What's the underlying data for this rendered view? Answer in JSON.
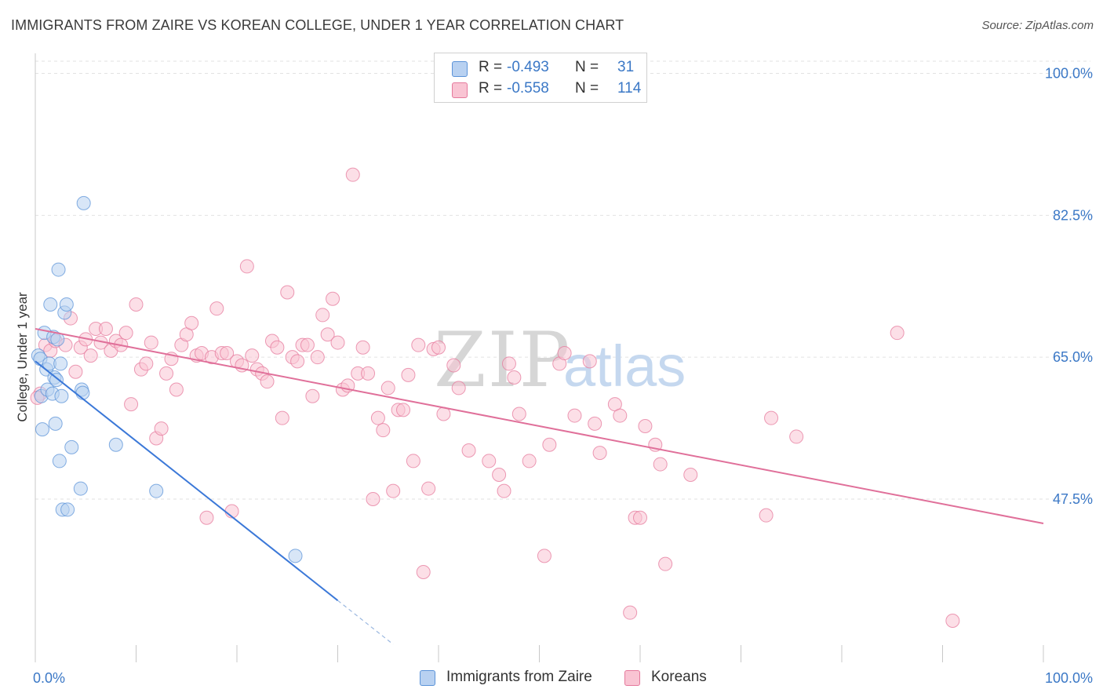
{
  "title": "IMMIGRANTS FROM ZAIRE VS KOREAN COLLEGE, UNDER 1 YEAR CORRELATION CHART",
  "source": "Source: ZipAtlas.com",
  "watermark": {
    "zip": "ZIP",
    "atlas": "atlas"
  },
  "legend_top": {
    "rows": [
      {
        "swatch_color": "#b8d1f1",
        "r_label": "R =",
        "r_value": "-0.493",
        "n_label": "N =",
        "n_value": "31"
      },
      {
        "swatch_color": "#f9c4d3",
        "r_label": "R =",
        "r_value": "-0.558",
        "n_label": "N =",
        "n_value": "114"
      }
    ]
  },
  "legend_bottom": [
    {
      "label": "Immigrants from Zaire",
      "color": "#b8d1f1"
    },
    {
      "label": "Koreans",
      "color": "#f9c4d3"
    }
  ],
  "chart_data": {
    "type": "scatter",
    "title": "IMMIGRANTS FROM ZAIRE VS KOREAN COLLEGE, UNDER 1 YEAR CORRELATION CHART",
    "xlabel": "",
    "ylabel": "College, Under 1 year",
    "xlim": [
      0,
      100
    ],
    "ylim": [
      29.5,
      101.5
    ],
    "x_tick_labels": [
      "0.0%",
      "100.0%"
    ],
    "y_ticks": [
      47.5,
      65.0,
      82.5,
      100.0
    ],
    "y_tick_labels": [
      "47.5%",
      "65.0%",
      "82.5%",
      "100.0%"
    ],
    "grid": true,
    "series": [
      {
        "name": "Immigrants from Zaire",
        "color": "#5b93d8",
        "fill": "#b8d1f1",
        "points": [
          [
            0.3,
            65.2
          ],
          [
            0.5,
            64.8
          ],
          [
            0.6,
            60.2
          ],
          [
            0.7,
            56.1
          ],
          [
            0.9,
            68.0
          ],
          [
            1.1,
            63.5
          ],
          [
            1.2,
            61.0
          ],
          [
            1.4,
            64.2
          ],
          [
            1.5,
            71.5
          ],
          [
            1.7,
            60.5
          ],
          [
            1.8,
            67.5
          ],
          [
            1.9,
            62.5
          ],
          [
            2.0,
            56.8
          ],
          [
            2.1,
            62.2
          ],
          [
            2.2,
            67.2
          ],
          [
            2.3,
            75.8
          ],
          [
            2.4,
            52.2
          ],
          [
            2.5,
            64.2
          ],
          [
            2.6,
            60.2
          ],
          [
            2.7,
            46.2
          ],
          [
            2.9,
            70.5
          ],
          [
            3.1,
            71.5
          ],
          [
            3.2,
            46.2
          ],
          [
            3.6,
            53.9
          ],
          [
            4.5,
            48.8
          ],
          [
            4.6,
            61.0
          ],
          [
            4.7,
            60.6
          ],
          [
            4.8,
            84.0
          ],
          [
            8.0,
            54.2
          ],
          [
            12.0,
            48.5
          ],
          [
            25.8,
            40.5
          ]
        ]
      },
      {
        "name": "Koreans",
        "color": "#e5799c",
        "fill": "#f9c4d3",
        "points": [
          [
            0.5,
            60.5
          ],
          [
            1.0,
            66.5
          ],
          [
            1.5,
            65.8
          ],
          [
            2.0,
            67.0
          ],
          [
            3.0,
            66.5
          ],
          [
            3.5,
            69.8
          ],
          [
            4.0,
            63.2
          ],
          [
            4.5,
            66.2
          ],
          [
            5.0,
            67.2
          ],
          [
            5.5,
            65.2
          ],
          [
            6.0,
            68.5
          ],
          [
            6.5,
            66.8
          ],
          [
            7.0,
            68.5
          ],
          [
            7.5,
            65.8
          ],
          [
            8.0,
            67.0
          ],
          [
            8.5,
            66.5
          ],
          [
            9.0,
            68.0
          ],
          [
            9.5,
            59.2
          ],
          [
            10.0,
            71.5
          ],
          [
            10.5,
            63.5
          ],
          [
            11.0,
            64.2
          ],
          [
            11.5,
            66.8
          ],
          [
            12.0,
            55.0
          ],
          [
            12.5,
            56.2
          ],
          [
            13.0,
            63.0
          ],
          [
            13.5,
            64.8
          ],
          [
            14.0,
            61.0
          ],
          [
            14.5,
            66.5
          ],
          [
            15.0,
            67.8
          ],
          [
            15.5,
            69.2
          ],
          [
            16.0,
            65.2
          ],
          [
            16.5,
            65.5
          ],
          [
            17.0,
            45.2
          ],
          [
            17.5,
            65.0
          ],
          [
            18.0,
            71.0
          ],
          [
            18.5,
            65.5
          ],
          [
            19.0,
            65.5
          ],
          [
            19.5,
            46.0
          ],
          [
            20.0,
            64.5
          ],
          [
            20.5,
            64.0
          ],
          [
            21.0,
            76.2
          ],
          [
            21.5,
            65.2
          ],
          [
            22.0,
            63.5
          ],
          [
            22.5,
            63.0
          ],
          [
            23.0,
            62.0
          ],
          [
            23.5,
            67.0
          ],
          [
            24.0,
            66.2
          ],
          [
            24.5,
            57.5
          ],
          [
            25.0,
            73.0
          ],
          [
            25.5,
            65.0
          ],
          [
            26.0,
            64.5
          ],
          [
            26.5,
            66.5
          ],
          [
            27.0,
            66.5
          ],
          [
            27.5,
            60.2
          ],
          [
            28.0,
            65.0
          ],
          [
            28.5,
            70.2
          ],
          [
            29.0,
            67.8
          ],
          [
            29.5,
            72.2
          ],
          [
            30.0,
            66.8
          ],
          [
            30.5,
            61.0
          ],
          [
            31.0,
            61.5
          ],
          [
            31.5,
            87.5
          ],
          [
            32.0,
            63.0
          ],
          [
            32.5,
            66.2
          ],
          [
            33.0,
            63.0
          ],
          [
            33.5,
            47.5
          ],
          [
            34.0,
            57.5
          ],
          [
            34.5,
            56.0
          ],
          [
            35.0,
            61.2
          ],
          [
            35.5,
            48.5
          ],
          [
            36.0,
            58.5
          ],
          [
            36.5,
            58.5
          ],
          [
            37.0,
            62.8
          ],
          [
            37.5,
            52.2
          ],
          [
            38.0,
            66.5
          ],
          [
            38.5,
            38.5
          ],
          [
            39.0,
            48.8
          ],
          [
            39.5,
            66.0
          ],
          [
            40.0,
            66.2
          ],
          [
            40.5,
            58.0
          ],
          [
            41.5,
            64.0
          ],
          [
            42.0,
            61.2
          ],
          [
            43.0,
            53.5
          ],
          [
            45.0,
            52.2
          ],
          [
            46.0,
            50.5
          ],
          [
            46.5,
            48.5
          ],
          [
            47.0,
            64.2
          ],
          [
            47.5,
            62.5
          ],
          [
            48.0,
            58.0
          ],
          [
            49.0,
            52.2
          ],
          [
            50.5,
            40.5
          ],
          [
            51.0,
            54.2
          ],
          [
            52.0,
            64.2
          ],
          [
            52.5,
            65.5
          ],
          [
            53.5,
            57.8
          ],
          [
            55.0,
            64.5
          ],
          [
            55.5,
            56.8
          ],
          [
            56.0,
            53.2
          ],
          [
            57.5,
            59.2
          ],
          [
            58.0,
            57.8
          ],
          [
            59.0,
            33.5
          ],
          [
            59.5,
            45.2
          ],
          [
            60.0,
            45.2
          ],
          [
            60.5,
            56.5
          ],
          [
            61.5,
            54.2
          ],
          [
            62.0,
            51.8
          ],
          [
            62.5,
            39.5
          ],
          [
            65.0,
            50.5
          ],
          [
            72.5,
            45.5
          ],
          [
            73.0,
            57.5
          ],
          [
            75.5,
            55.2
          ],
          [
            85.5,
            68.0
          ],
          [
            91.0,
            32.5
          ],
          [
            0.2,
            60.0
          ]
        ]
      }
    ],
    "trendlines": [
      {
        "series": "Immigrants from Zaire",
        "x_start": 0.0,
        "y_start": 64.5,
        "x_end": 30.0,
        "y_end": 35.0,
        "dashed_to_x": 35.5
      },
      {
        "series": "Koreans",
        "x_start": 0.0,
        "y_start": 68.5,
        "x_end": 100.0,
        "y_end": 44.5
      }
    ]
  }
}
